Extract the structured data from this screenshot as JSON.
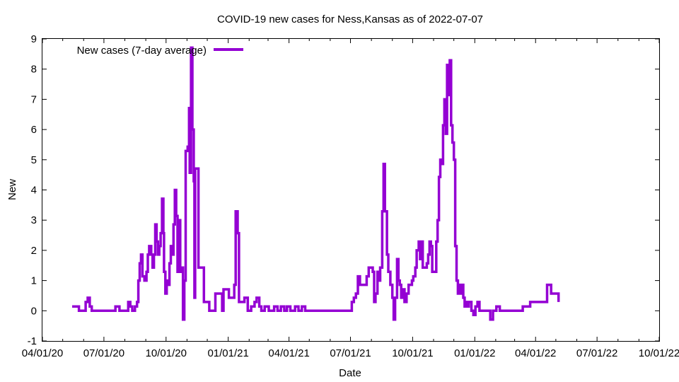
{
  "chart_data": {
    "type": "line",
    "title": "COVID-19 new cases for Ness,Kansas as of 2022-07-07",
    "xlabel": "Date",
    "ylabel": "New",
    "xlim": [
      "2020-04-01",
      "2022-10-01"
    ],
    "ylim": [
      -1,
      9
    ],
    "grid": false,
    "legend_position": "top-left",
    "series_color": "#9400d3",
    "x_ticks": [
      "04/01/20",
      "07/01/20",
      "10/01/20",
      "01/01/21",
      "04/01/21",
      "07/01/21",
      "10/01/21",
      "01/01/22",
      "04/01/22",
      "07/01/22",
      "10/01/22"
    ],
    "x_tick_dates": [
      "2020-04-01",
      "2020-07-01",
      "2020-10-01",
      "2021-01-01",
      "2021-04-01",
      "2021-07-01",
      "2021-10-01",
      "2022-01-01",
      "2022-04-01",
      "2022-07-01",
      "2022-10-01"
    ],
    "y_ticks": [
      "-1",
      "0",
      "1",
      "2",
      "3",
      "4",
      "5",
      "6",
      "7",
      "8",
      "9"
    ],
    "series": [
      {
        "name": "New cases (7-day average)",
        "points": [
          [
            "2020-05-15",
            0.14
          ],
          [
            "2020-05-22",
            0.14
          ],
          [
            "2020-05-25",
            0.0
          ],
          [
            "2020-06-01",
            0.0
          ],
          [
            "2020-06-04",
            0.29
          ],
          [
            "2020-06-07",
            0.43
          ],
          [
            "2020-06-10",
            0.14
          ],
          [
            "2020-06-13",
            0.0
          ],
          [
            "2020-07-15",
            0.0
          ],
          [
            "2020-07-18",
            0.14
          ],
          [
            "2020-07-24",
            0.0
          ],
          [
            "2020-08-03",
            0.0
          ],
          [
            "2020-08-06",
            0.29
          ],
          [
            "2020-08-09",
            0.14
          ],
          [
            "2020-08-12",
            0.0
          ],
          [
            "2020-08-16",
            0.14
          ],
          [
            "2020-08-19",
            0.29
          ],
          [
            "2020-08-21",
            1.0
          ],
          [
            "2020-08-23",
            1.57
          ],
          [
            "2020-08-25",
            1.86
          ],
          [
            "2020-08-27",
            1.14
          ],
          [
            "2020-08-30",
            1.0
          ],
          [
            "2020-09-02",
            1.29
          ],
          [
            "2020-09-04",
            1.86
          ],
          [
            "2020-09-06",
            2.14
          ],
          [
            "2020-09-09",
            1.86
          ],
          [
            "2020-09-11",
            1.43
          ],
          [
            "2020-09-13",
            1.86
          ],
          [
            "2020-09-15",
            2.86
          ],
          [
            "2020-09-17",
            2.29
          ],
          [
            "2020-09-19",
            1.86
          ],
          [
            "2020-09-21",
            2.14
          ],
          [
            "2020-09-23",
            2.57
          ],
          [
            "2020-09-25",
            3.71
          ],
          [
            "2020-09-27",
            2.57
          ],
          [
            "2020-09-28",
            1.29
          ],
          [
            "2020-09-30",
            0.57
          ],
          [
            "2020-10-02",
            1.0
          ],
          [
            "2020-10-04",
            0.86
          ],
          [
            "2020-10-06",
            1.57
          ],
          [
            "2020-10-08",
            2.14
          ],
          [
            "2020-10-10",
            1.86
          ],
          [
            "2020-10-12",
            2.86
          ],
          [
            "2020-10-14",
            4.0
          ],
          [
            "2020-10-16",
            3.14
          ],
          [
            "2020-10-18",
            1.29
          ],
          [
            "2020-10-20",
            3.0
          ],
          [
            "2020-10-22",
            1.29
          ],
          [
            "2020-10-24",
            1.43
          ],
          [
            "2020-10-26",
            -0.29
          ],
          [
            "2020-10-28",
            1.0
          ],
          [
            "2020-10-30",
            5.29
          ],
          [
            "2020-11-02",
            5.43
          ],
          [
            "2020-11-04",
            6.71
          ],
          [
            "2020-11-05",
            4.57
          ],
          [
            "2020-11-07",
            8.71
          ],
          [
            "2020-11-09",
            6.0
          ],
          [
            "2020-11-11",
            4.29
          ],
          [
            "2020-11-12",
            0.43
          ],
          [
            "2020-11-13",
            4.71
          ],
          [
            "2020-11-16",
            4.71
          ],
          [
            "2020-11-18",
            1.43
          ],
          [
            "2020-11-23",
            1.43
          ],
          [
            "2020-11-26",
            0.29
          ],
          [
            "2020-12-01",
            0.29
          ],
          [
            "2020-12-04",
            0.0
          ],
          [
            "2020-12-11",
            0.0
          ],
          [
            "2020-12-13",
            0.57
          ],
          [
            "2020-12-20",
            0.57
          ],
          [
            "2020-12-23",
            0.0
          ],
          [
            "2020-12-25",
            0.71
          ],
          [
            "2020-12-30",
            0.71
          ],
          [
            "2021-01-02",
            0.43
          ],
          [
            "2021-01-08",
            0.43
          ],
          [
            "2021-01-10",
            0.86
          ],
          [
            "2021-01-12",
            3.29
          ],
          [
            "2021-01-15",
            2.57
          ],
          [
            "2021-01-17",
            0.29
          ],
          [
            "2021-01-23",
            0.29
          ],
          [
            "2021-01-25",
            0.43
          ],
          [
            "2021-01-30",
            0.0
          ],
          [
            "2021-02-04",
            0.14
          ],
          [
            "2021-02-09",
            0.29
          ],
          [
            "2021-02-12",
            0.43
          ],
          [
            "2021-02-16",
            0.14
          ],
          [
            "2021-02-19",
            0.0
          ],
          [
            "2021-02-24",
            0.14
          ],
          [
            "2021-03-02",
            0.0
          ],
          [
            "2021-03-10",
            0.14
          ],
          [
            "2021-03-15",
            0.0
          ],
          [
            "2021-03-20",
            0.14
          ],
          [
            "2021-03-25",
            0.0
          ],
          [
            "2021-03-29",
            0.14
          ],
          [
            "2021-04-03",
            0.0
          ],
          [
            "2021-04-10",
            0.14
          ],
          [
            "2021-04-15",
            0.0
          ],
          [
            "2021-04-20",
            0.14
          ],
          [
            "2021-04-25",
            0.0
          ],
          [
            "2021-06-30",
            0.0
          ],
          [
            "2021-07-03",
            0.29
          ],
          [
            "2021-07-06",
            0.43
          ],
          [
            "2021-07-09",
            0.57
          ],
          [
            "2021-07-12",
            1.14
          ],
          [
            "2021-07-15",
            0.86
          ],
          [
            "2021-07-22",
            0.86
          ],
          [
            "2021-07-25",
            1.14
          ],
          [
            "2021-07-28",
            1.43
          ],
          [
            "2021-08-03",
            1.29
          ],
          [
            "2021-08-05",
            0.29
          ],
          [
            "2021-08-07",
            0.57
          ],
          [
            "2021-08-10",
            1.29
          ],
          [
            "2021-08-12",
            1.0
          ],
          [
            "2021-08-14",
            1.43
          ],
          [
            "2021-08-17",
            3.29
          ],
          [
            "2021-08-19",
            4.86
          ],
          [
            "2021-08-21",
            3.29
          ],
          [
            "2021-08-24",
            1.86
          ],
          [
            "2021-08-26",
            1.29
          ],
          [
            "2021-08-29",
            0.86
          ],
          [
            "2021-09-01",
            0.43
          ],
          [
            "2021-09-03",
            -0.29
          ],
          [
            "2021-09-05",
            0.43
          ],
          [
            "2021-09-08",
            1.71
          ],
          [
            "2021-09-10",
            1.0
          ],
          [
            "2021-09-12",
            0.86
          ],
          [
            "2021-09-14",
            0.43
          ],
          [
            "2021-09-16",
            0.71
          ],
          [
            "2021-09-19",
            0.29
          ],
          [
            "2021-09-22",
            0.57
          ],
          [
            "2021-09-25",
            0.86
          ],
          [
            "2021-09-30",
            1.0
          ],
          [
            "2021-10-02",
            1.14
          ],
          [
            "2021-10-05",
            1.43
          ],
          [
            "2021-10-07",
            2.0
          ],
          [
            "2021-10-10",
            2.29
          ],
          [
            "2021-10-12",
            1.71
          ],
          [
            "2021-10-14",
            2.29
          ],
          [
            "2021-10-16",
            1.43
          ],
          [
            "2021-10-19",
            1.43
          ],
          [
            "2021-10-22",
            1.57
          ],
          [
            "2021-10-24",
            1.86
          ],
          [
            "2021-10-26",
            2.29
          ],
          [
            "2021-10-28",
            2.14
          ],
          [
            "2021-10-30",
            1.29
          ],
          [
            "2021-11-03",
            1.29
          ],
          [
            "2021-11-05",
            2.29
          ],
          [
            "2021-11-07",
            3.0
          ],
          [
            "2021-11-09",
            4.43
          ],
          [
            "2021-11-11",
            5.0
          ],
          [
            "2021-11-13",
            4.86
          ],
          [
            "2021-11-15",
            6.14
          ],
          [
            "2021-11-17",
            7.0
          ],
          [
            "2021-11-19",
            5.86
          ],
          [
            "2021-11-21",
            8.14
          ],
          [
            "2021-11-23",
            7.14
          ],
          [
            "2021-11-25",
            8.29
          ],
          [
            "2021-11-27",
            6.14
          ],
          [
            "2021-11-29",
            5.57
          ],
          [
            "2021-12-01",
            5.0
          ],
          [
            "2021-12-03",
            2.14
          ],
          [
            "2021-12-05",
            1.0
          ],
          [
            "2021-12-07",
            0.57
          ],
          [
            "2021-12-09",
            0.86
          ],
          [
            "2021-12-11",
            0.57
          ],
          [
            "2021-12-13",
            0.86
          ],
          [
            "2021-12-15",
            0.43
          ],
          [
            "2021-12-17",
            0.14
          ],
          [
            "2021-12-19",
            0.29
          ],
          [
            "2021-12-21",
            0.14
          ],
          [
            "2021-12-23",
            0.29
          ],
          [
            "2021-12-27",
            0.0
          ],
          [
            "2021-12-30",
            -0.14
          ],
          [
            "2022-01-02",
            0.14
          ],
          [
            "2022-01-05",
            0.29
          ],
          [
            "2022-01-08",
            0.0
          ],
          [
            "2022-01-22",
            0.0
          ],
          [
            "2022-01-24",
            -0.29
          ],
          [
            "2022-01-28",
            0.0
          ],
          [
            "2022-02-02",
            0.14
          ],
          [
            "2022-02-07",
            0.0
          ],
          [
            "2022-03-10",
            0.0
          ],
          [
            "2022-03-13",
            0.14
          ],
          [
            "2022-03-20",
            0.14
          ],
          [
            "2022-03-24",
            0.29
          ],
          [
            "2022-04-15",
            0.29
          ],
          [
            "2022-04-18",
            0.86
          ],
          [
            "2022-04-24",
            0.57
          ],
          [
            "2022-05-01",
            0.57
          ],
          [
            "2022-05-05",
            0.29
          ]
        ]
      }
    ]
  }
}
